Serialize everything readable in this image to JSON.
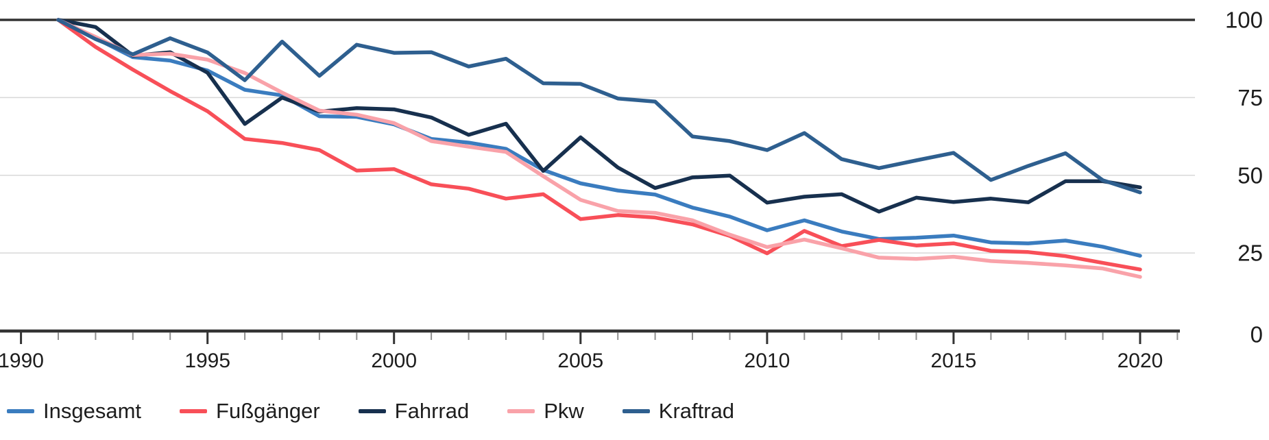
{
  "chart_data": {
    "type": "line",
    "x_years": [
      1991,
      1992,
      1993,
      1994,
      1995,
      1996,
      1997,
      1998,
      1999,
      2000,
      2001,
      2002,
      2003,
      2004,
      2005,
      2006,
      2007,
      2008,
      2009,
      2010,
      2011,
      2012,
      2013,
      2014,
      2015,
      2016,
      2017,
      2018,
      2019,
      2020
    ],
    "series": [
      {
        "name": "Insgesamt",
        "color": "#3a7cbf",
        "values": [
          100,
          94.1,
          88.0,
          86.9,
          83.7,
          77.5,
          75.7,
          69.0,
          68.8,
          66.4,
          61.7,
          60.5,
          58.5,
          51.7,
          47.4,
          45.1,
          43.8,
          39.6,
          36.7,
          32.3,
          35.5,
          31.9,
          29.5,
          29.9,
          30.6,
          28.4,
          28.1,
          29.0,
          27.0,
          24.1
        ]
      },
      {
        "name": "Fußgänger",
        "color": "#f84f58",
        "values": [
          100,
          91.3,
          84.0,
          77.1,
          70.6,
          61.7,
          60.4,
          58.1,
          51.5,
          52.0,
          47.1,
          45.7,
          42.5,
          43.9,
          35.9,
          37.2,
          36.4,
          34.2,
          30.5,
          24.9,
          32.1,
          27.2,
          29.2,
          27.4,
          28.1,
          25.7,
          25.3,
          24.0,
          21.8,
          19.7
        ]
      },
      {
        "name": "Fahrrad",
        "color": "#17304e",
        "values": [
          100,
          97.7,
          88.5,
          89.6,
          83.0,
          66.5,
          75.0,
          70.5,
          71.6,
          71.2,
          68.6,
          63.0,
          66.6,
          51.4,
          62.2,
          52.5,
          45.9,
          49.3,
          49.9,
          41.2,
          43.1,
          43.9,
          38.3,
          42.8,
          41.4,
          42.5,
          41.3,
          48.1,
          48.1,
          46.1
        ]
      },
      {
        "name": "Pkw",
        "color": "#f9a2a9",
        "values": [
          100,
          94.5,
          88.7,
          89.1,
          87.2,
          82.9,
          76.6,
          70.8,
          69.5,
          66.8,
          61.0,
          59.2,
          57.5,
          49.7,
          42.1,
          38.5,
          37.9,
          35.5,
          30.9,
          26.9,
          29.3,
          26.5,
          23.5,
          23.1,
          23.8,
          22.4,
          21.8,
          21.0,
          20.0,
          17.3
        ]
      },
      {
        "name": "Kraftrad",
        "color": "#2e5f8f",
        "values": [
          100,
          93.8,
          88.9,
          94.1,
          89.5,
          80.6,
          93.0,
          82.0,
          92.0,
          89.4,
          89.6,
          85.0,
          87.5,
          79.6,
          79.4,
          74.7,
          73.7,
          62.5,
          61.0,
          58.1,
          63.6,
          55.2,
          52.3,
          54.8,
          57.2,
          48.5,
          53.0,
          57.1,
          48.4,
          44.5
        ]
      }
    ],
    "ylim": [
      0,
      100
    ],
    "y_ticks": [
      100,
      75,
      50,
      25,
      0
    ],
    "x_major_ticks": [
      1990,
      1995,
      2000,
      2005,
      2010,
      2015,
      2020
    ],
    "x_minor_tick_range": [
      1990,
      2021
    ],
    "grid": "horizontal",
    "legend_position": "bottom-left"
  },
  "style": {
    "background": "#ffffff",
    "axis_color": "#333333",
    "grid_color": "#d8d8d8",
    "minor_tick_color": "#8f8f8f",
    "text_color": "#1d1d1d"
  }
}
